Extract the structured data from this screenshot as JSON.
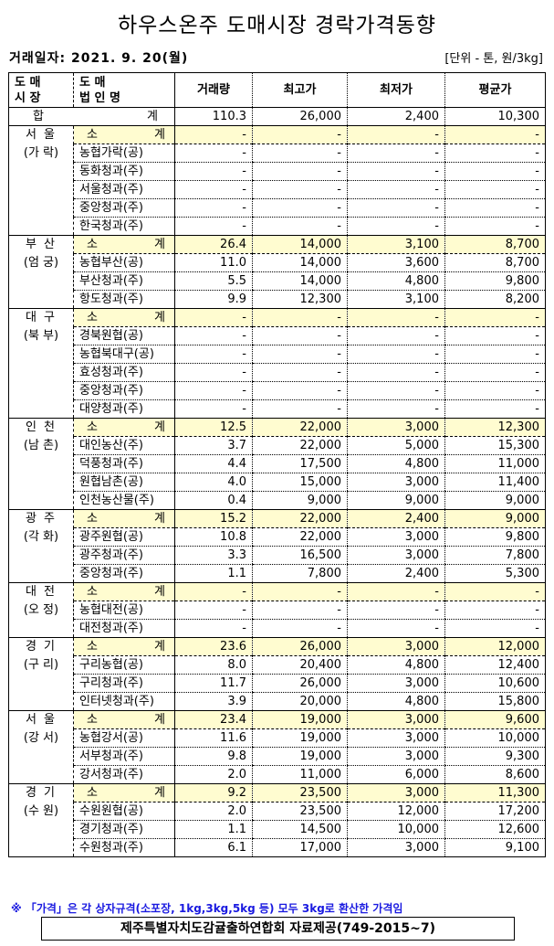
{
  "title": "하우스온주 도매시장 경락가격동향",
  "date": "거래일자: 2021. 9. 20(월)",
  "unit": "[단위 - 톤, 원/3kg]",
  "headers": {
    "market": [
      "도 매",
      "시 장"
    ],
    "corp": [
      "도 매",
      "법 인 명"
    ],
    "volume": "거래량",
    "max": "최고가",
    "min": "최저가",
    "avg": "평균가"
  },
  "total": {
    "label": [
      "합",
      "계"
    ],
    "volume": "110.3",
    "max": "26,000",
    "min": "2,400",
    "avg": "10,300"
  },
  "subtotal_label": [
    "소",
    "계"
  ],
  "colors": {
    "subtotal_bg": "#fffcd0",
    "note": "#1a1ae0"
  },
  "groups": [
    {
      "market": [
        "서 울",
        "(가 락)"
      ],
      "subtotal": [
        "-",
        "-",
        "-",
        "-"
      ],
      "rows": [
        [
          "농협가락(공)",
          "-",
          "-",
          "-",
          "-"
        ],
        [
          "동화청과(주)",
          "-",
          "-",
          "-",
          "-"
        ],
        [
          "서울청과(주)",
          "-",
          "-",
          "-",
          "-"
        ],
        [
          "중앙청과(주)",
          "-",
          "-",
          "-",
          "-"
        ],
        [
          "한국청과(주)",
          "-",
          "-",
          "-",
          "-"
        ]
      ]
    },
    {
      "market": [
        "부 산",
        "(엄 궁)"
      ],
      "subtotal": [
        "26.4",
        "14,000",
        "3,100",
        "8,700"
      ],
      "rows": [
        [
          "농협부산(공)",
          "11.0",
          "14,000",
          "3,600",
          "8,700"
        ],
        [
          "부산청과(주)",
          "5.5",
          "14,000",
          "4,800",
          "9,800"
        ],
        [
          "항도청과(주)",
          "9.9",
          "12,300",
          "3,100",
          "8,200"
        ]
      ]
    },
    {
      "market": [
        "대 구",
        "(북 부)"
      ],
      "subtotal": [
        "-",
        "-",
        "-",
        "-"
      ],
      "rows": [
        [
          "경북원협(공)",
          "-",
          "-",
          "-",
          "-"
        ],
        [
          "농협북대구(공)",
          "-",
          "-",
          "-",
          "-"
        ],
        [
          "효성청과(주)",
          "-",
          "-",
          "-",
          "-"
        ],
        [
          "중앙청과(주)",
          "-",
          "-",
          "-",
          "-"
        ],
        [
          "대양청과(주)",
          "-",
          "-",
          "-",
          "-"
        ]
      ]
    },
    {
      "market": [
        "인 천",
        "(남 촌)"
      ],
      "subtotal": [
        "12.5",
        "22,000",
        "3,000",
        "12,300"
      ],
      "rows": [
        [
          "대인농산(주)",
          "3.7",
          "22,000",
          "5,000",
          "15,300"
        ],
        [
          "덕풍청과(주)",
          "4.4",
          "17,500",
          "4,800",
          "11,000"
        ],
        [
          "원협남촌(공)",
          "4.0",
          "15,000",
          "3,000",
          "11,400"
        ],
        [
          "인천농산물(주)",
          "0.4",
          "9,000",
          "9,000",
          "9,000"
        ]
      ]
    },
    {
      "market": [
        "광 주",
        "(각 화)"
      ],
      "subtotal": [
        "15.2",
        "22,000",
        "2,400",
        "9,000"
      ],
      "rows": [
        [
          "광주원협(공)",
          "10.8",
          "22,000",
          "3,000",
          "9,800"
        ],
        [
          "광주청과(주)",
          "3.3",
          "16,500",
          "3,000",
          "7,800"
        ],
        [
          "중앙청과(주)",
          "1.1",
          "7,800",
          "2,400",
          "5,300"
        ]
      ]
    },
    {
      "market": [
        "대 전",
        "(오 정)"
      ],
      "subtotal": [
        "-",
        "-",
        "-",
        "-"
      ],
      "rows": [
        [
          "농협대전(공)",
          "-",
          "-",
          "-",
          "-"
        ],
        [
          "대전청과(주)",
          "-",
          "-",
          "-",
          "-"
        ]
      ]
    },
    {
      "market": [
        "경 기",
        "(구 리)"
      ],
      "subtotal": [
        "23.6",
        "26,000",
        "3,000",
        "12,000"
      ],
      "rows": [
        [
          "구리농협(공)",
          "8.0",
          "20,400",
          "4,800",
          "12,400"
        ],
        [
          "구리청과(주)",
          "11.7",
          "26,000",
          "3,000",
          "10,600"
        ],
        [
          "인터넷청과(주)",
          "3.9",
          "20,000",
          "4,800",
          "15,800"
        ]
      ]
    },
    {
      "market": [
        "서 울",
        "(강 서)"
      ],
      "subtotal": [
        "23.4",
        "19,000",
        "3,000",
        "9,600"
      ],
      "rows": [
        [
          "농협강서(공)",
          "11.6",
          "19,000",
          "3,000",
          "10,000"
        ],
        [
          "서부청과(주)",
          "9.8",
          "19,000",
          "3,000",
          "9,300"
        ],
        [
          "강서청과(주)",
          "2.0",
          "11,000",
          "6,000",
          "8,600"
        ]
      ]
    },
    {
      "market": [
        "경 기",
        "(수 원)"
      ],
      "subtotal": [
        "9.2",
        "23,500",
        "3,000",
        "11,300"
      ],
      "rows": [
        [
          "수원원협(공)",
          "2.0",
          "23,500",
          "12,000",
          "17,200"
        ],
        [
          "경기청과(주)",
          "1.1",
          "14,500",
          "10,000",
          "12,600"
        ],
        [
          "수원청과(주)",
          "6.1",
          "17,000",
          "3,000",
          "9,100"
        ]
      ]
    }
  ],
  "note": "※ 「가격」은 각 상자규격(소포장, 1kg,3kg,5kg 등) 모두 3kg로 환산한 가격임",
  "source": "제주특별자치도감귤출하연합회 자료제공(749-2015~7)"
}
